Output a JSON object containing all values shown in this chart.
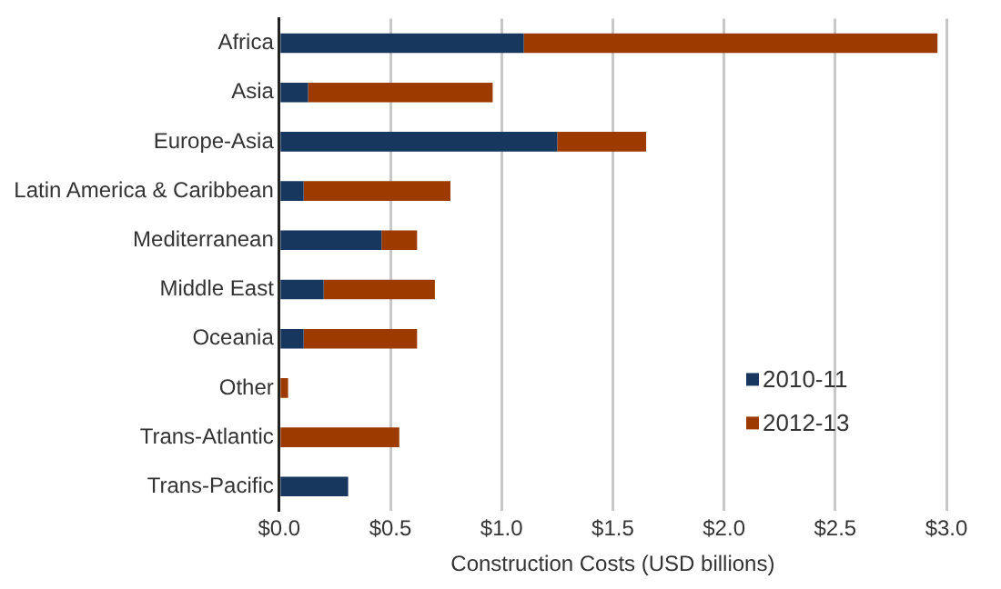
{
  "chart_data": {
    "type": "bar",
    "orientation": "horizontal",
    "stacked": true,
    "xlabel": "Construction Costs (USD billions)",
    "categories": [
      "Africa",
      "Asia",
      "Europe-Asia",
      "Latin America & Caribbean",
      "Mediterranean",
      "Middle East",
      "Oceania",
      "Other",
      "Trans-Atlantic",
      "Trans-Pacific"
    ],
    "series": [
      {
        "name": "2010-11",
        "color": "#17375e",
        "values": [
          1.1,
          0.13,
          1.25,
          0.11,
          0.46,
          0.2,
          0.11,
          0,
          0,
          0.31
        ]
      },
      {
        "name": "2012-13",
        "color": "#9c3a00",
        "values": [
          1.86,
          0.83,
          0.4,
          0.66,
          0.16,
          0.5,
          0.51,
          0.04,
          0.54,
          0
        ]
      }
    ],
    "xlim": [
      0,
      3
    ],
    "xticks": [
      {
        "value": 0,
        "label": "$0.0"
      },
      {
        "value": 0.5,
        "label": "$0.5"
      },
      {
        "value": 1,
        "label": "$1.0"
      },
      {
        "value": 1.5,
        "label": "$1.5"
      },
      {
        "value": 2,
        "label": "$2.0"
      },
      {
        "value": 2.5,
        "label": "$2.5"
      },
      {
        "value": 3,
        "label": "$3.0"
      }
    ],
    "grid": "x",
    "legend": "right"
  }
}
